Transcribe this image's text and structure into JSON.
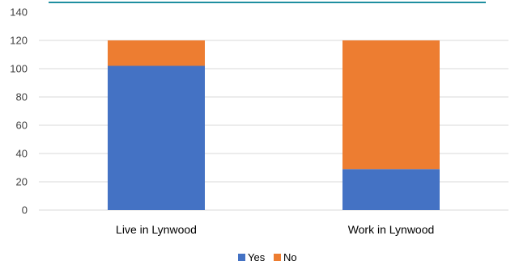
{
  "chart_data": {
    "type": "bar",
    "stacked": true,
    "categories": [
      "Live in Lynwood",
      "Work in Lynwood"
    ],
    "series": [
      {
        "name": "Yes",
        "values": [
          102,
          29
        ],
        "color": "#4472C4"
      },
      {
        "name": "No",
        "values": [
          18,
          91
        ],
        "color": "#ED7D31"
      }
    ],
    "ylim": [
      0,
      140
    ],
    "yticks": [
      0,
      20,
      40,
      60,
      80,
      100,
      120,
      140
    ],
    "grid": true,
    "legend_position": "bottom",
    "header_rule_color": "#1F8FA0"
  }
}
